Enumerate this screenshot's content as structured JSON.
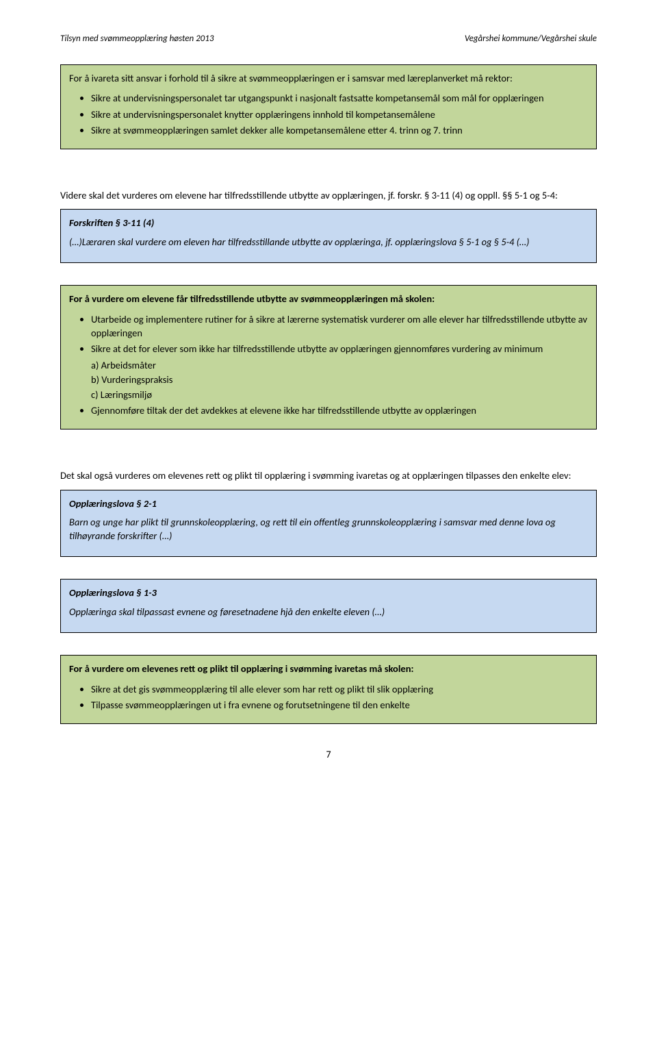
{
  "header": {
    "left": "Tilsyn med svømmeopplæring høsten 2013",
    "right": "Vegårshei kommune/Vegårshei skule"
  },
  "box1": {
    "intro": "For å ivareta sitt ansvar i forhold til å sikre at svømmeopplæringen er i samsvar med læreplanverket må rektor:",
    "items": [
      "Sikre at undervisningspersonalet tar utgangspunkt i nasjonalt fastsatte kompetansemål som mål for opplæringen",
      "Sikre at undervisningspersonalet knytter opplæringens innhold til kompetansemålene",
      "Sikre at svømmeopplæringen samlet dekker alle kompetansemålene etter 4. trinn og 7. trinn"
    ]
  },
  "para1": "Videre skal det vurderes om elevene har tilfredsstillende utbytte av opplæringen, jf. forskr. § 3-11 (4) og oppll. §§ 5-1 og 5-4:",
  "box2": {
    "title": "Forskriften § 3-11 (4)",
    "body": "(…)Læraren skal vurdere om eleven har tilfredsstillande utbytte av opplæringa, jf. opplæringslova § 5-1 og § 5-4 (…)"
  },
  "box3": {
    "intro": "For å vurdere om elevene får tilfredsstillende utbytte av svømmeopplæringen må skolen:",
    "items": [
      "Utarbeide og implementere rutiner for å sikre at lærerne systematisk vurderer om alle elever har tilfredsstillende utbytte av opplæringen",
      "Sikre at det for elever som ikke har tilfredsstillende utbytte av opplæringen gjennomføres vurdering av minimum",
      "Gjennomføre tiltak der det avdekkes at elevene ikke har tilfredsstillende utbytte av opplæringen"
    ],
    "subitems": {
      "a": "a) Arbeidsmåter",
      "b": "b) Vurderingspraksis",
      "c": "c) Læringsmiljø"
    }
  },
  "para2": "Det skal også vurderes om elevenes rett og plikt til opplæring i svømming ivaretas og at opplæringen tilpasses den enkelte elev:",
  "box4": {
    "title": "Opplæringslova § 2-1",
    "body": "Barn og unge har plikt til grunnskoleopplæring, og rett til ein offentleg grunnskoleopplæring i samsvar med denne lova og tilhøyrande forskrifter (…)"
  },
  "box5": {
    "title": "Opplæringslova § 1-3",
    "body": "Opplæringa skal tilpassast evnene og føresetnadene hjå den enkelte eleven (…)"
  },
  "box6": {
    "intro": "For å vurdere om elevenes rett og plikt til opplæring i svømming ivaretas må skolen:",
    "items": [
      "Sikre at det gis svømmeopplæring til alle elever som har rett og plikt til slik opplæring",
      "Tilpasse svømmeopplæringen ut i fra evnene og forutsetningene til den enkelte"
    ]
  },
  "pagenum": "7"
}
